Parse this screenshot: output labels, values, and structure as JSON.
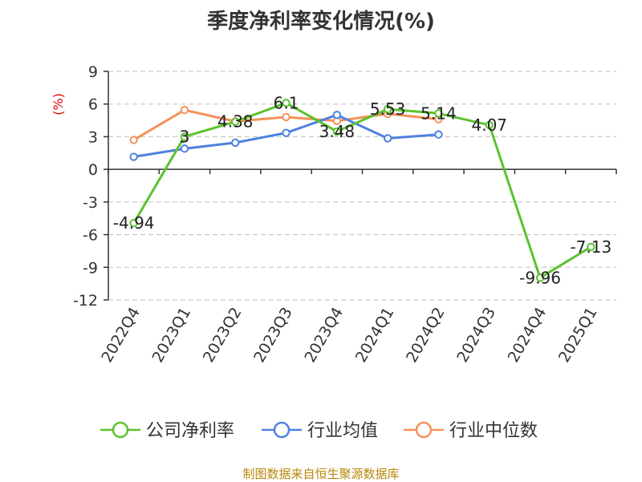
{
  "chart_data": {
    "type": "line",
    "title": "季度净利率变化情况(%)",
    "ylabel": "(%)",
    "categories": [
      "2022Q4",
      "2023Q1",
      "2023Q2",
      "2023Q3",
      "2023Q4",
      "2024Q1",
      "2024Q2",
      "2024Q3",
      "2024Q4",
      "2025Q1"
    ],
    "yticks": [
      9,
      6,
      3,
      0,
      -3,
      -6,
      -9,
      -12
    ],
    "ylim": [
      -12,
      9
    ],
    "grid": true,
    "legend_position": "bottom",
    "series": [
      {
        "name": "公司净利率",
        "color": "#5cc22e",
        "values": [
          -4.94,
          3,
          4.38,
          6.1,
          3.48,
          5.53,
          5.14,
          4.07,
          -9.96,
          -7.13
        ],
        "labels": [
          "-4.94",
          "3",
          "4.38",
          "6.1",
          "3.48",
          "5.53",
          "5.14",
          "4.07",
          "-9.96",
          "-7.13"
        ]
      },
      {
        "name": "行业均值",
        "color": "#4f81e0",
        "values": [
          1.15,
          1.9,
          2.45,
          3.35,
          5.0,
          2.85,
          3.2,
          null,
          null,
          null
        ]
      },
      {
        "name": "行业中位数",
        "color": "#f5915a",
        "values": [
          2.7,
          5.45,
          4.4,
          4.8,
          4.45,
          5.1,
          4.6,
          null,
          null,
          null
        ]
      }
    ]
  },
  "footer": {
    "source": "制图数据来自恒生聚源数据库"
  }
}
